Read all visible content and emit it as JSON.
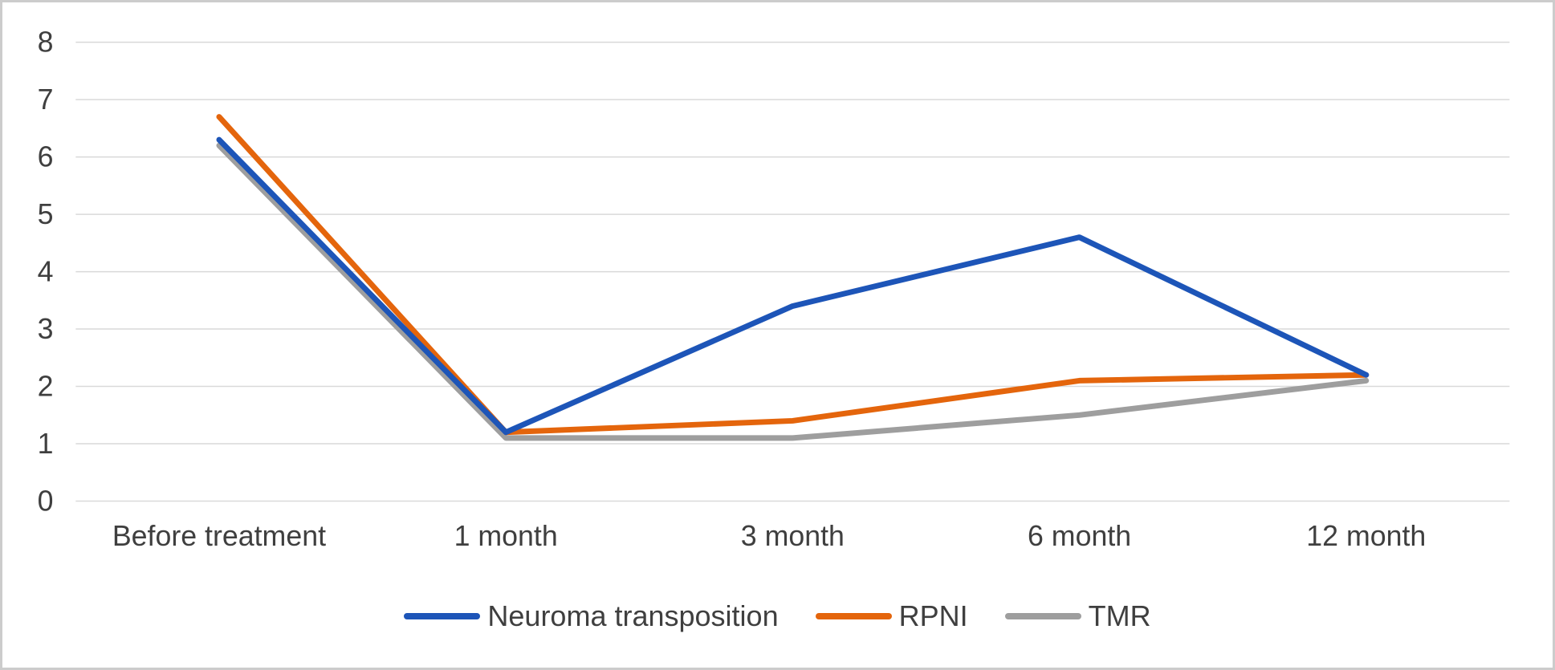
{
  "chart_data": {
    "type": "line",
    "title": "",
    "xlabel": "",
    "ylabel": "",
    "categories": [
      "Before treatment",
      "1 month",
      "3 month",
      "6 month",
      "12 month"
    ],
    "series": [
      {
        "name": "Neuroma transposition",
        "color": "#1d55b8",
        "values": [
          6.3,
          1.2,
          3.4,
          4.6,
          2.2
        ]
      },
      {
        "name": "RPNI",
        "color": "#e4650c",
        "values": [
          6.7,
          1.2,
          1.4,
          2.1,
          2.2
        ]
      },
      {
        "name": "TMR",
        "color": "#9e9e9e",
        "values": [
          6.2,
          1.1,
          1.1,
          1.5,
          2.1
        ]
      }
    ],
    "ylim": [
      0,
      8
    ],
    "ytick_step": 1,
    "ytick_labels": [
      "0",
      "1",
      "2",
      "3",
      "4",
      "5",
      "6",
      "7",
      "8"
    ],
    "grid": true,
    "legend_position": "bottom"
  },
  "style": {
    "gridline_color": "#d9d9d9",
    "axis_text_color": "#3f3f3f",
    "border_color": "#cccccc",
    "background_color": "#ffffff",
    "line_width": 7
  }
}
